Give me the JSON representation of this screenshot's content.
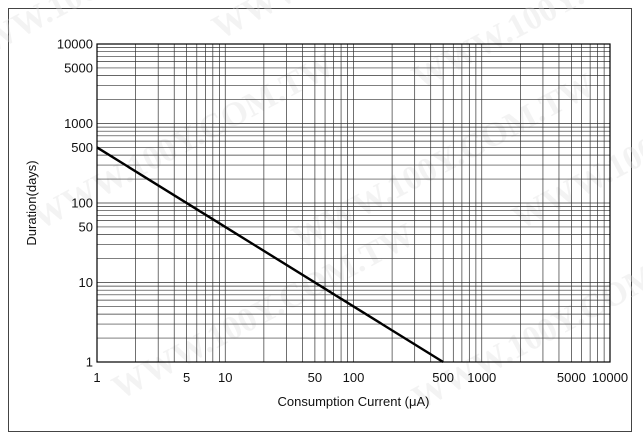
{
  "chart_data": {
    "type": "line",
    "xscale": "log",
    "yscale": "log",
    "xlim": [
      1,
      10000
    ],
    "ylim": [
      1,
      10000
    ],
    "xlabel": "Consumption Current (μA)",
    "ylabel": "Duration(days)",
    "grid": true,
    "x_ticks": [
      1,
      5,
      10,
      50,
      100,
      500,
      1000,
      5000,
      10000
    ],
    "x_tick_labels": [
      "1",
      "5",
      "10",
      "50",
      "100",
      "500",
      "1000",
      "5000",
      "10000"
    ],
    "y_ticks": [
      1,
      10,
      50,
      100,
      500,
      1000,
      5000,
      10000
    ],
    "y_tick_labels": [
      "1",
      "10",
      "50",
      "100",
      "500",
      "1000",
      "5000",
      "10000"
    ],
    "series": [
      {
        "x": [
          1,
          10,
          100,
          500
        ],
        "y": [
          500,
          50,
          5,
          1
        ],
        "color": "#000000"
      }
    ]
  },
  "watermark": {
    "text": "WWW.100Y.COM.TW",
    "color": "#dcdcdc"
  }
}
